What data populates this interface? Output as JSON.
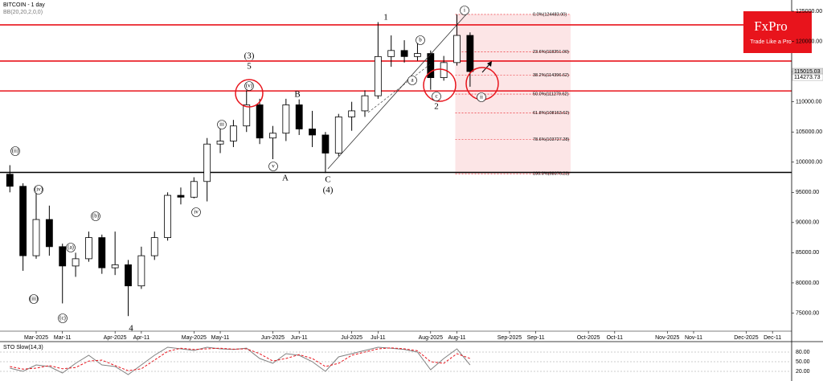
{
  "chart_data": {
    "type": "candlestick",
    "title": "BITCOIN - 1 day",
    "indicator": "BB(20,20,2,0,0)",
    "logo": {
      "brand": "FxPro",
      "tagline": "Trade Like a Pro"
    },
    "categories": [
      null,
      null,
      "Mar-2025",
      null,
      "Mar-11",
      null,
      null,
      null,
      "Apr-2025",
      null,
      "Apr-11",
      null,
      null,
      null,
      "May-2025",
      null,
      "May-11",
      null,
      null,
      null,
      "Jun-2025",
      null,
      "Jun-11",
      null,
      null,
      null,
      "Jul-2025",
      null,
      "Jul-11",
      null,
      null,
      null,
      "Aug-2025",
      null,
      "Aug-11",
      null,
      null,
      null,
      "Sep-2025",
      null,
      "Sep-11",
      null,
      null,
      null,
      "Oct-2025",
      null,
      "Oct-11",
      null,
      null,
      null,
      "Nov-2025",
      null,
      "Nov-11",
      null,
      null,
      null,
      "Dec-2025",
      null,
      "Dec-11",
      null,
      null,
      null
    ],
    "open": [
      98000,
      96000,
      84500,
      90500,
      86000,
      82800,
      84000,
      87500,
      82500,
      83000,
      79500,
      84500,
      87500,
      94500,
      94200,
      96800,
      103000,
      103500,
      106000,
      109500,
      104000,
      104800,
      109500,
      105500,
      104500,
      101500,
      107500,
      108500,
      111000,
      117500,
      118500,
      117500,
      118000,
      114000,
      116500,
      121000,
      null,
      null,
      null,
      null,
      null,
      null,
      null,
      null,
      null,
      null,
      null,
      null,
      null,
      null,
      null,
      null,
      null,
      null,
      null,
      null,
      null,
      null,
      null,
      null,
      null,
      null
    ],
    "high": [
      99500,
      96500,
      95000,
      92800,
      86500,
      85000,
      88500,
      88000,
      88500,
      83800,
      86000,
      88500,
      95000,
      95800,
      97500,
      104000,
      105700,
      107000,
      111900,
      110500,
      106000,
      110500,
      110400,
      108500,
      105000,
      108000,
      110000,
      111900,
      123200,
      121000,
      120200,
      119800,
      118500,
      117600,
      124480,
      121500,
      null,
      null,
      null,
      null,
      null,
      null,
      null,
      null,
      null,
      null,
      null,
      null,
      null,
      null,
      null,
      null,
      null,
      null,
      null,
      null,
      null,
      null,
      null,
      null,
      null,
      null
    ],
    "low": [
      95000,
      82000,
      84000,
      84500,
      76600,
      81000,
      83500,
      81500,
      81300,
      74500,
      79000,
      83800,
      87000,
      93000,
      94000,
      93500,
      101500,
      102500,
      105000,
      103000,
      100500,
      103500,
      104500,
      102500,
      98200,
      101000,
      105200,
      107500,
      110500,
      115800,
      116500,
      116800,
      112000,
      113500,
      116000,
      112500,
      null,
      null,
      null,
      null,
      null,
      null,
      null,
      null,
      null,
      null,
      null,
      null,
      null,
      null,
      null,
      null,
      null,
      null,
      null,
      null,
      null,
      null,
      null,
      null,
      null,
      null
    ],
    "close": [
      96000,
      84500,
      90500,
      86000,
      82800,
      84000,
      87500,
      82500,
      83000,
      79500,
      84500,
      87500,
      94500,
      94200,
      96800,
      103000,
      103500,
      106000,
      109500,
      104000,
      104800,
      109500,
      105500,
      104500,
      101500,
      107500,
      108500,
      111000,
      117500,
      118500,
      117500,
      118000,
      114000,
      116500,
      121000,
      115015,
      null,
      null,
      null,
      null,
      null,
      null,
      null,
      null,
      null,
      null,
      null,
      null,
      null,
      null,
      null,
      null,
      null,
      null,
      null,
      null,
      null,
      null,
      null,
      null,
      null,
      null
    ],
    "ylim": [
      72000,
      126600
    ],
    "yticks": [
      {
        "value": 75000,
        "label": "75000.00"
      },
      {
        "value": 80000,
        "label": "80000.00"
      },
      {
        "value": 85000,
        "label": "85000.00"
      },
      {
        "value": 90000,
        "label": "90000.00"
      },
      {
        "value": 95000,
        "label": "95000.00"
      },
      {
        "value": 100000,
        "label": "100000.00"
      },
      {
        "value": 105000,
        "label": "105000.00"
      },
      {
        "value": 110000,
        "label": "110000.00"
      },
      {
        "value": 115000,
        "label": "115000.00"
      },
      {
        "value": 120000,
        "label": "120000.00"
      },
      {
        "value": 125000,
        "label": "125000.00"
      }
    ],
    "price_labels": [
      115015.03,
      114273.73
    ],
    "levels": {
      "color": "#e8141c",
      "values": [
        122740,
        116750,
        111800
      ]
    },
    "base_level": {
      "color": "#000000",
      "value": 98300
    },
    "fibonacci": [
      {
        "value": 124483,
        "label": "0.0%(124483.00)"
      },
      {
        "value": 118251,
        "label": "23.6%(118251.00)"
      },
      {
        "value": 114396.62,
        "label": "38.2%(114396.62)"
      },
      {
        "value": 111279.62,
        "label": "50.0%(111279.62)"
      },
      {
        "value": 108163.62,
        "label": "61.8%(108163.62)"
      },
      {
        "value": 103727.28,
        "label": "78.6%(103727.28)"
      },
      {
        "value": 98076.23,
        "label": "100.0%(98076.23)"
      }
    ],
    "annotations": [
      "1",
      "2",
      "(3)",
      "5",
      "(4)",
      "A",
      "B",
      "C",
      "4",
      "i",
      "ii",
      "c",
      "(v)",
      "a",
      "b",
      "(iii)",
      "(iv)",
      "iii",
      "iv",
      "v",
      "(a)",
      "(b)",
      "(c)",
      "(ii)"
    ],
    "oscillator": {
      "title": "STO Slow(14,3)",
      "ylim": [
        0,
        100
      ],
      "yticks": [
        {
          "value": 20,
          "label": "20.00"
        },
        {
          "value": 50,
          "label": "50.00"
        },
        {
          "value": 80,
          "label": "80.00"
        }
      ],
      "series": [
        {
          "color": "#808080",
          "values": [
            30,
            20,
            40,
            35,
            15,
            45,
            70,
            40,
            35,
            10,
            40,
            70,
            95,
            90,
            85,
            95,
            90,
            88,
            92,
            60,
            45,
            75,
            70,
            50,
            20,
            65,
            75,
            85,
            95,
            92,
            88,
            80,
            25,
            60,
            90,
            40,
            null,
            null,
            null,
            null,
            null,
            null,
            null,
            null,
            null,
            null,
            null,
            null,
            null,
            null,
            null,
            null,
            null,
            null,
            null,
            null,
            null,
            null,
            null,
            null,
            null,
            null
          ]
        },
        {
          "color": "#e8141c",
          "values": [
            35,
            27,
            30,
            38,
            28,
            32,
            52,
            55,
            38,
            22,
            28,
            55,
            82,
            92,
            88,
            90,
            92,
            89,
            90,
            75,
            52,
            60,
            72,
            60,
            35,
            45,
            70,
            80,
            90,
            93,
            90,
            84,
            50,
            45,
            75,
            60,
            null,
            null,
            null,
            null,
            null,
            null,
            null,
            null,
            null,
            null,
            null,
            null,
            null,
            null,
            null,
            null,
            null,
            null,
            null,
            null,
            null,
            null,
            null,
            null,
            null,
            null
          ]
        }
      ]
    }
  }
}
